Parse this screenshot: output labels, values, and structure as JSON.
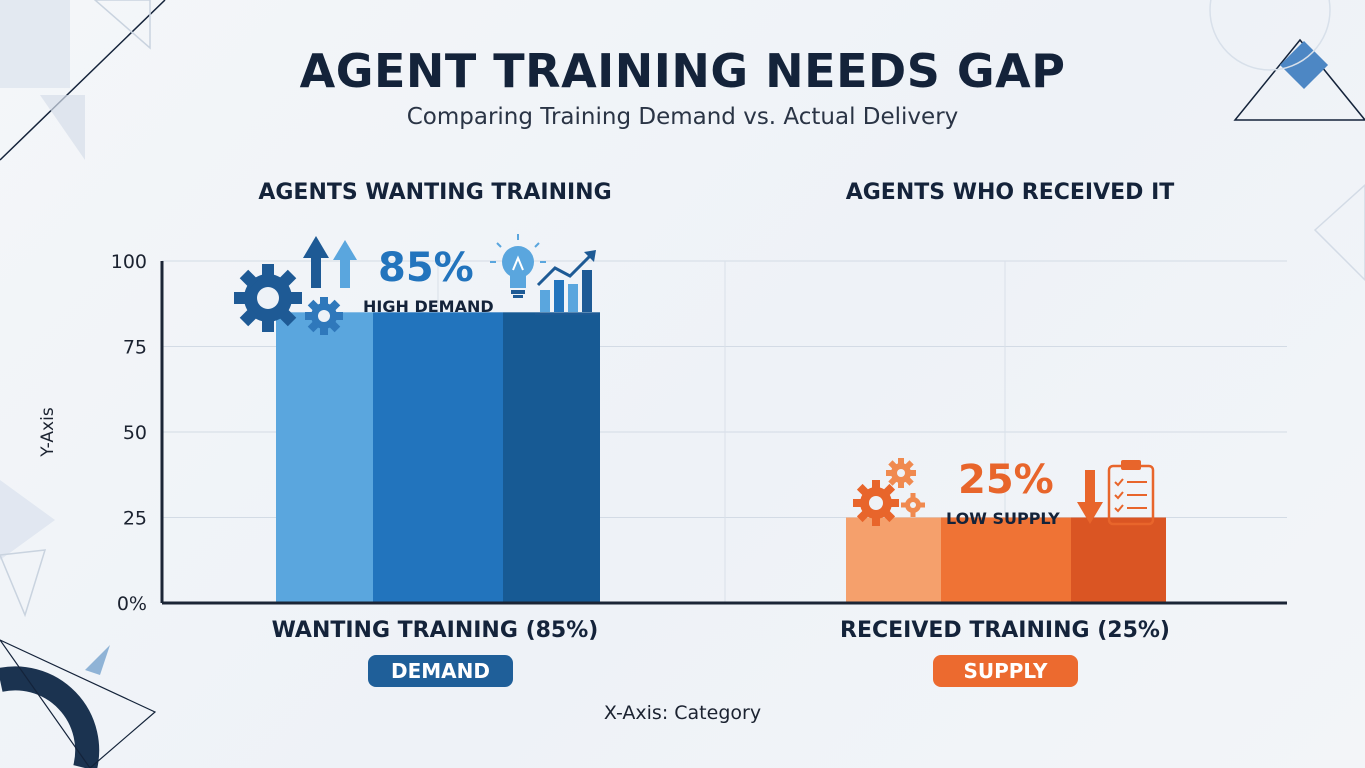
{
  "title": "AGENT TRAINING NEEDS GAP",
  "subtitle": "Comparing Training Demand vs. Actual Delivery",
  "colors": {
    "demand_light": "#5aa6de",
    "demand_mid": "#2274bd",
    "demand_dark": "#175a94",
    "supply_light": "#f5a06c",
    "supply_mid": "#ef7335",
    "supply_dark": "#da5523",
    "demand_pill": "#1f5f99",
    "supply_pill": "#ec6a2f",
    "text_dark": "#14233a"
  },
  "chart_data": {
    "type": "bar",
    "title": "AGENT TRAINING NEEDS GAP",
    "subtitle": "Comparing Training Demand vs. Actual Delivery",
    "xlabel": "X-Axis: Category",
    "ylabel": "Y-Axis",
    "ylim": [
      0,
      100
    ],
    "yticks": [
      0,
      25,
      50,
      75,
      100
    ],
    "ytick_labels": [
      "0%",
      "25",
      "50",
      "75",
      "100"
    ],
    "grid": true,
    "categories": [
      "WANTING TRAINING (85%)",
      "RECEIVED TRAINING (25%)"
    ],
    "panel_titles": [
      "AGENTS WANTING TRAINING",
      "AGENTS WHO RECEIVED IT"
    ],
    "values": [
      85,
      25
    ],
    "value_labels": [
      "85%",
      "25%"
    ],
    "annotations": [
      "HIGH DEMAND",
      "LOW SUPPLY"
    ],
    "tags": [
      "DEMAND",
      "SUPPLY"
    ]
  }
}
